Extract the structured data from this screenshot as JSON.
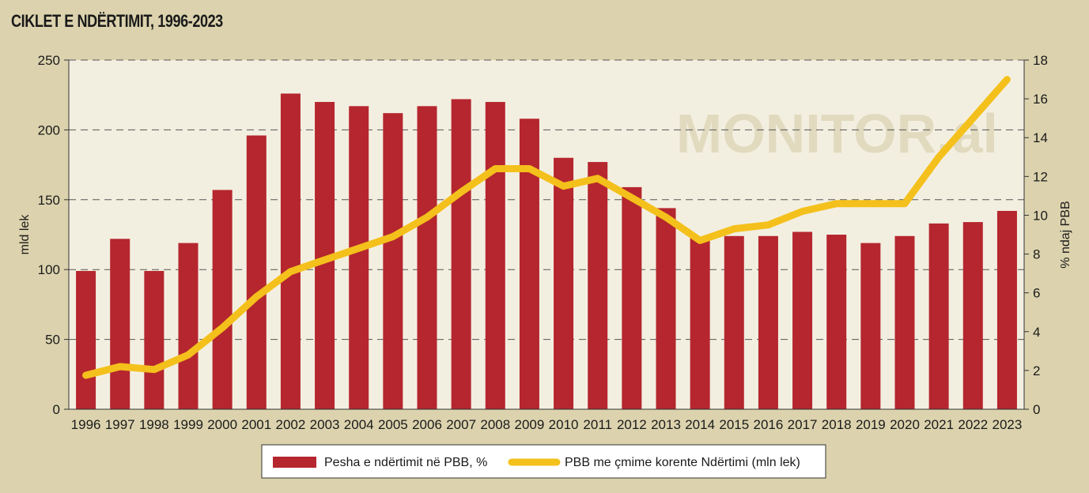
{
  "chart_data": {
    "type": "bar",
    "title": "CIKLET E NDËRTIMIT, 1996-2023",
    "watermark": "MONITOR.al",
    "categories": [
      "1996",
      "1997",
      "1998",
      "1999",
      "2000",
      "2001",
      "2002",
      "2003",
      "2004",
      "2005",
      "2006",
      "2007",
      "2008",
      "2009",
      "2010",
      "2011",
      "2012",
      "2013",
      "2014",
      "2015",
      "2016",
      "2017",
      "2018",
      "2019",
      "2020",
      "2021",
      "2022",
      "2023"
    ],
    "ylabel_left": "mld lek",
    "ylabel_right": "% ndaj PBB",
    "ylim_left": [
      0,
      250
    ],
    "yticks_left": [
      0,
      50,
      100,
      150,
      200,
      250
    ],
    "ylim_right": [
      0,
      18
    ],
    "yticks_right": [
      0,
      2,
      4,
      6,
      8,
      10,
      12,
      14,
      16,
      18
    ],
    "grid": "horizontal dashed",
    "legend_position": "bottom-center",
    "series": [
      {
        "name": "Pesha e ndërtimit në PBB, %",
        "type": "bar",
        "axis": "left",
        "color": "#b5262f",
        "values": [
          99,
          122,
          99,
          119,
          157,
          196,
          226,
          220,
          217,
          212,
          217,
          222,
          220,
          208,
          180,
          177,
          159,
          144,
          123,
          124,
          124,
          127,
          125,
          119,
          124,
          133,
          134,
          142
        ]
      },
      {
        "name": "PBB me çmime korente Ndërtimi (mln lek)",
        "type": "line",
        "axis": "right",
        "color": "#f4c01b",
        "values": [
          1.75,
          2.2,
          2.05,
          2.8,
          4.2,
          5.8,
          7.1,
          7.7,
          8.3,
          8.9,
          9.9,
          11.2,
          12.4,
          12.4,
          11.5,
          11.9,
          10.9,
          9.9,
          8.7,
          9.3,
          9.5,
          10.2,
          10.6,
          10.6,
          10.6,
          13.0,
          15.0,
          17.0
        ]
      }
    ]
  }
}
